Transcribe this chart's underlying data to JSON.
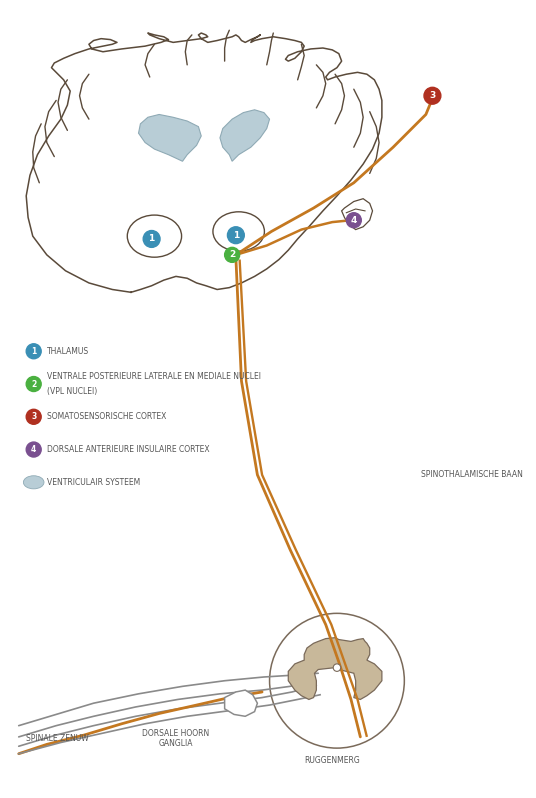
{
  "bg_color": "#ffffff",
  "brain_outline_color": "#5a4a3a",
  "brain_fill_color": "#ffffff",
  "ventricle_fill": "#b8cdd6",
  "ventricle_outline": "#8faab5",
  "thalamus_fill": "#ffffff",
  "spinal_gray_fill": "#c8b89a",
  "spinal_outline": "#7a6a5a",
  "pathway_color": "#c47820",
  "pathway_lw": 2.0,
  "nerve_color": "#8a8a8a",
  "nerve_lw": 1.2,
  "circle1_color": "#3a8fb5",
  "circle2_color": "#4ab040",
  "circle3_color": "#b03020",
  "circle4_color": "#7a5090",
  "legend_labels": [
    "THALAMUS",
    "VENTRALE POSTERIEURE LATERALE EN MEDIALE NUCLEI\n(VPL NUCLEI)",
    "SOMATOSENSORISCHE CORTEX",
    "DORSALE ANTERIEURE INSULAIRE CORTEX",
    "VENTRICULAIR SYSTEEM"
  ],
  "legend_colors": [
    "#3a8fb5",
    "#4ab040",
    "#b03020",
    "#7a5090",
    "#b8cdd6"
  ],
  "label_spinothalamische": "SPINOTHALAMISCHE BAAN",
  "label_spinale": "SPINALE ZENUW",
  "label_dorsale": "DORSALE HOORN\nGANGLIA",
  "label_ruggenmerg": "RUGGENMERG",
  "label_fontsize": 5.5,
  "legend_fontsize": 5.5
}
